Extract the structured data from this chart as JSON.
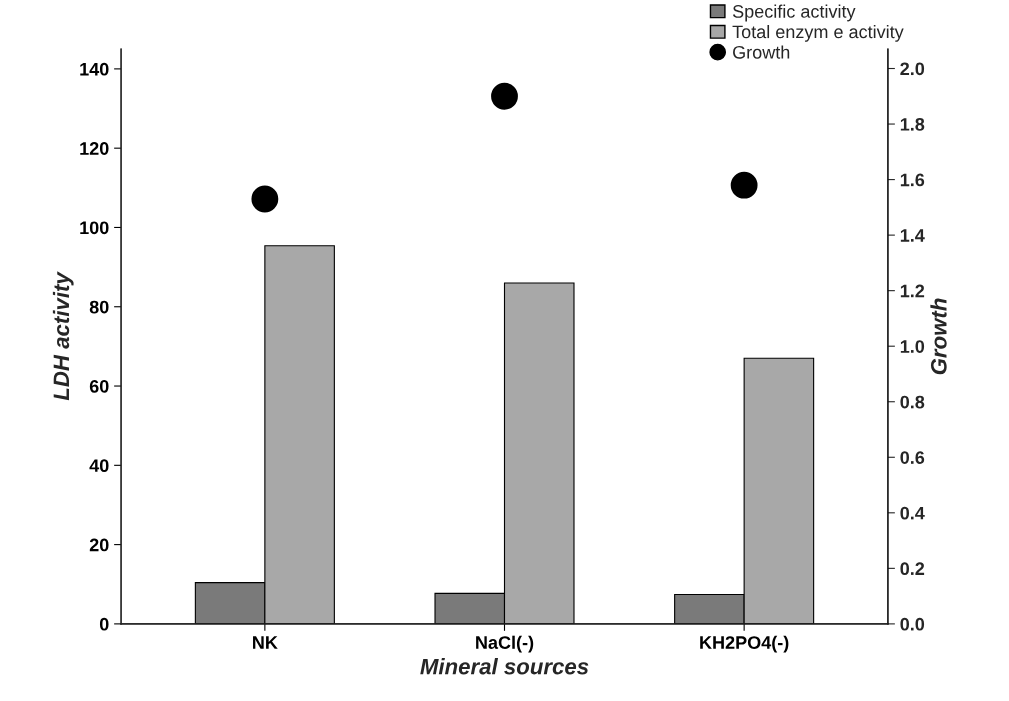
{
  "chart_data": {
    "type": "bar",
    "xlabel": "Mineral sources",
    "ylabel": "LDH activity",
    "y2label": "Growth",
    "categories": [
      "NK",
      "NaCl(-)",
      "KH2PO4(-)"
    ],
    "series": [
      {
        "name": "Specific activity",
        "color": "#7a7a7a",
        "values": [
          10.4,
          7.7,
          7.4
        ]
      },
      {
        "name": "Total enzym e activity",
        "color": "#a8a8a8",
        "values": [
          95.4,
          86.0,
          67.0
        ]
      },
      {
        "name": "Growth",
        "type": "scatter",
        "axis": "y2",
        "color": "#000000",
        "values": [
          1.53,
          1.9,
          1.58
        ]
      }
    ],
    "ylim": [
      0,
      145
    ],
    "yticks": [
      0,
      20,
      40,
      60,
      80,
      100,
      120,
      140
    ],
    "y2lim": [
      0,
      2.07
    ],
    "y2ticks": [
      {
        "value": 0,
        "label": "0.0"
      },
      0.2,
      0.4,
      0.6,
      0.8,
      {
        "value": 1,
        "label": "1.0"
      },
      1.2,
      1.4,
      1.6,
      1.8,
      {
        "value": 2,
        "label": "2.0"
      }
    ],
    "legend": "top right",
    "grid": false,
    "marker": "circle"
  }
}
